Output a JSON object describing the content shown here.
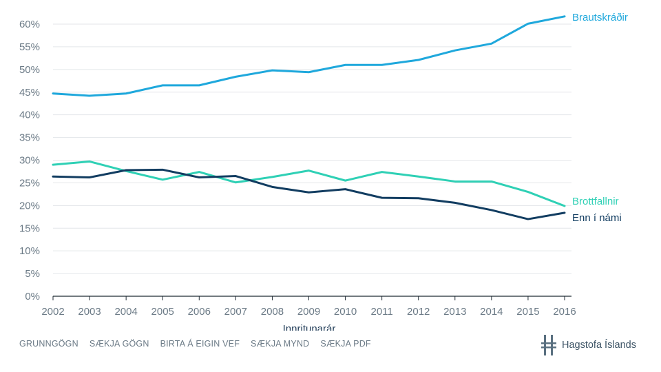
{
  "chart_data": {
    "type": "line",
    "title": "",
    "xlabel": "Innritunarár",
    "ylabel": "",
    "x": [
      2002,
      2003,
      2004,
      2005,
      2006,
      2007,
      2008,
      2009,
      2010,
      2011,
      2012,
      2013,
      2014,
      2015,
      2016
    ],
    "x_tick_labels": [
      "2002",
      "2003",
      "2004",
      "2005",
      "2006",
      "2007",
      "2008",
      "2009",
      "2010",
      "2011",
      "2012",
      "2013",
      "2014",
      "2015",
      "2016"
    ],
    "ylim": [
      0,
      60
    ],
    "y_ticks": [
      0,
      5,
      10,
      15,
      20,
      25,
      30,
      35,
      40,
      45,
      50,
      55,
      60
    ],
    "y_tick_labels": [
      "0%",
      "5%",
      "10%",
      "15%",
      "20%",
      "25%",
      "30%",
      "35%",
      "40%",
      "45%",
      "50%",
      "55%",
      "60%"
    ],
    "grid": true,
    "series": [
      {
        "name": "Brautskráðir",
        "color": "#1fa8dc",
        "values": [
          44.7,
          44.2,
          44.7,
          46.5,
          46.5,
          48.4,
          49.8,
          49.4,
          51.0,
          51.0,
          52.1,
          54.2,
          55.7,
          60.1,
          61.7
        ]
      },
      {
        "name": "Brottfallnir",
        "color": "#2fd0b5",
        "values": [
          29.0,
          29.7,
          27.6,
          25.7,
          27.4,
          25.1,
          26.3,
          27.7,
          25.5,
          27.4,
          26.4,
          25.3,
          25.3,
          23.0,
          19.9
        ]
      },
      {
        "name": "Enn í námi",
        "color": "#123d61",
        "values": [
          26.4,
          26.2,
          27.8,
          27.9,
          26.2,
          26.5,
          24.1,
          22.9,
          23.6,
          21.7,
          21.6,
          20.6,
          19.0,
          17.0,
          18.4
        ]
      }
    ]
  },
  "toolbar": {
    "items": [
      "GRUNNGÖGN",
      "SÆKJA GÖGN",
      "BIRTA Á EIGIN VEF",
      "SÆKJA MYND",
      "SÆKJA PDF"
    ]
  },
  "brand": {
    "name": "Hagstofa Íslands",
    "logo_icon": "hagstofa-logo-icon",
    "color": "#3d5466"
  }
}
